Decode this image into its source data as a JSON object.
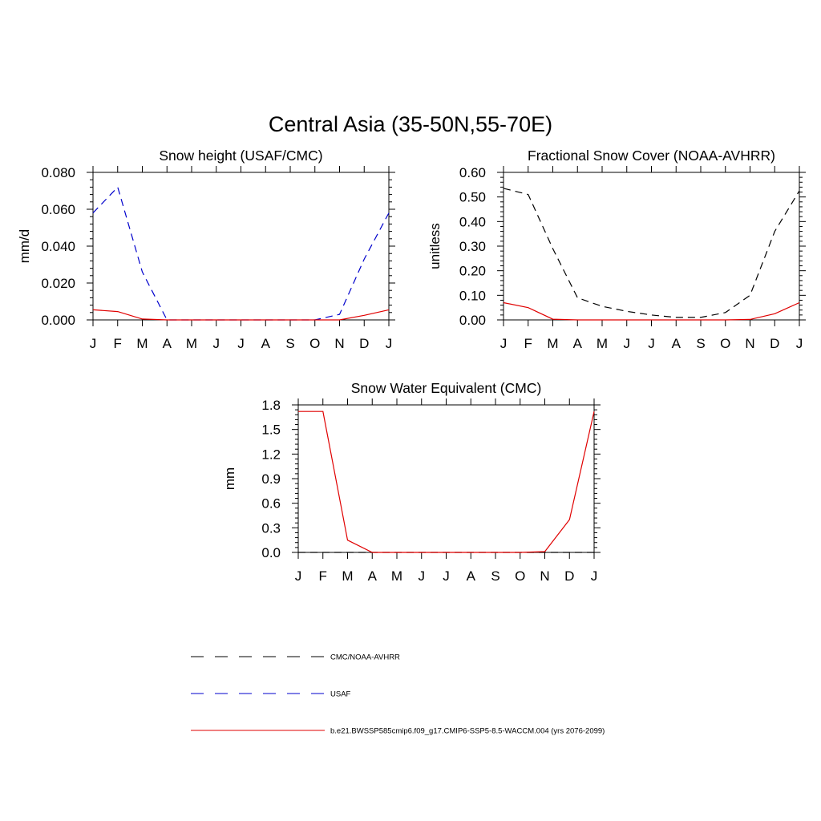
{
  "title": "Central Asia (35-50N,55-70E)",
  "legend": [
    {
      "label": "CMC/NOAA-AVHRR",
      "color": "#000000",
      "dash": "dashed"
    },
    {
      "label": "USAF",
      "color": "#0000cc",
      "dash": "dashed"
    },
    {
      "label": "b.e21.BWSSP585cmip6.f09_g17.CMIP6-SSP5-8.5-WACCM.004 (yrs 2076-2099)",
      "color": "#e00000",
      "dash": "solid"
    }
  ],
  "chart_data": [
    {
      "type": "line",
      "title": "Snow height (USAF/CMC)",
      "ylabel": "mm/d",
      "xlabel": "",
      "categories": [
        "J",
        "F",
        "M",
        "A",
        "M",
        "J",
        "J",
        "A",
        "S",
        "O",
        "N",
        "D",
        "J"
      ],
      "ylim": [
        0,
        0.08
      ],
      "yticks": [
        0,
        0.02,
        0.04,
        0.06,
        0.08
      ],
      "ytick_labels": [
        "0.000",
        "0.020",
        "0.040",
        "0.060",
        "0.080"
      ],
      "series": [
        {
          "name": "USAF",
          "color": "#0000cc",
          "dash": "dashed",
          "values": [
            0.058,
            0.072,
            0.026,
            0.0,
            0.0,
            0.0,
            0.0,
            0.0,
            0.0,
            0.0,
            0.003,
            0.033,
            0.058
          ]
        },
        {
          "name": "b.e21.BWSSP585cmip6.f09_g17.CMIP6-SSP5-8.5-WACCM.004 (yrs 2076-2099)",
          "color": "#e00000",
          "dash": "solid",
          "values": [
            0.0055,
            0.0045,
            0.0005,
            0.0,
            0.0,
            0.0,
            0.0,
            0.0,
            0.0,
            0.0,
            0.0,
            0.0025,
            0.0055
          ]
        }
      ]
    },
    {
      "type": "line",
      "title": "Fractional Snow Cover (NOAA-AVHRR)",
      "ylabel": "unitless",
      "xlabel": "",
      "categories": [
        "J",
        "F",
        "M",
        "A",
        "M",
        "J",
        "J",
        "A",
        "S",
        "O",
        "N",
        "D",
        "J"
      ],
      "ylim": [
        0,
        0.6
      ],
      "yticks": [
        0,
        0.1,
        0.2,
        0.3,
        0.4,
        0.5,
        0.6
      ],
      "ytick_labels": [
        "0.00",
        "0.10",
        "0.20",
        "0.30",
        "0.40",
        "0.50",
        "0.60"
      ],
      "series": [
        {
          "name": "CMC/NOAA-AVHRR",
          "color": "#000000",
          "dash": "dashed",
          "values": [
            0.535,
            0.51,
            0.29,
            0.09,
            0.055,
            0.035,
            0.02,
            0.01,
            0.01,
            0.03,
            0.1,
            0.36,
            0.525
          ]
        },
        {
          "name": "b.e21.BWSSP585cmip6.f09_g17.CMIP6-SSP5-8.5-WACCM.004 (yrs 2076-2099)",
          "color": "#e00000",
          "dash": "solid",
          "values": [
            0.07,
            0.05,
            0.003,
            0.0,
            0.0,
            0.0,
            0.0,
            0.0,
            0.0,
            0.0,
            0.002,
            0.025,
            0.07
          ]
        }
      ]
    },
    {
      "type": "line",
      "title": "Snow Water Equivalent (CMC)",
      "ylabel": "mm",
      "xlabel": "",
      "categories": [
        "J",
        "F",
        "M",
        "A",
        "M",
        "J",
        "J",
        "A",
        "S",
        "O",
        "N",
        "D",
        "J"
      ],
      "ylim": [
        0,
        1.8
      ],
      "yticks": [
        0,
        0.3,
        0.6,
        0.9,
        1.2,
        1.5,
        1.8
      ],
      "ytick_labels": [
        "0.0",
        "0.3",
        "0.6",
        "0.9",
        "1.2",
        "1.5",
        "1.8"
      ],
      "series": [
        {
          "name": "CMC/NOAA-AVHRR",
          "color": "#000000",
          "dash": "dashed",
          "values": [
            0.0,
            0.0,
            0.0,
            0.0,
            0.0,
            0.0,
            0.0,
            0.0,
            0.0,
            0.0,
            0.0,
            0.0,
            0.0
          ]
        },
        {
          "name": "b.e21.BWSSP585cmip6.f09_g17.CMIP6-SSP5-8.5-WACCM.004 (yrs 2076-2099)",
          "color": "#e00000",
          "dash": "solid",
          "values": [
            1.72,
            1.72,
            0.15,
            0.0,
            0.0,
            0.0,
            0.0,
            0.0,
            0.0,
            0.0,
            0.01,
            0.4,
            1.72
          ]
        }
      ]
    }
  ]
}
